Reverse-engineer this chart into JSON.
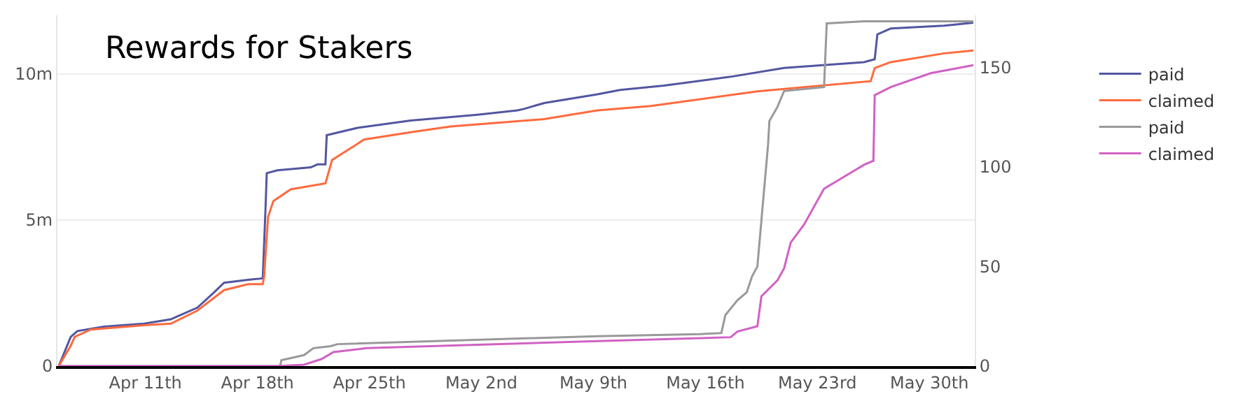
{
  "chart_data": {
    "type": "line",
    "title": "Rewards for Stakers",
    "xlim": [
      "--04-05T12:00",
      "--06-01T20:00"
    ],
    "xticks": [
      {
        "value": "--04-11",
        "label": "Apr 11th"
      },
      {
        "value": "--04-18",
        "label": "Apr 18th"
      },
      {
        "value": "--04-25",
        "label": "Apr 25th"
      },
      {
        "value": "--05-02",
        "label": "May 2nd"
      },
      {
        "value": "--05-09",
        "label": "May 9th"
      },
      {
        "value": "--05-16",
        "label": "May 16th"
      },
      {
        "value": "--05-23",
        "label": "May 23rd"
      },
      {
        "value": "--05-30",
        "label": "May 30th"
      }
    ],
    "ylim": [
      0,
      12000000
    ],
    "yticks": [
      0,
      {
        "value": 5000000,
        "label": "5m"
      },
      {
        "value": 10000000,
        "label": "10m"
      }
    ],
    "y2lim": [
      0,
      176
    ],
    "y2ticks": [
      0,
      50,
      100,
      150
    ],
    "grid": "y",
    "legend": "right",
    "series": [
      {
        "name": "paid",
        "color": "#5256a0",
        "x": [
          "--04-05T14:00",
          "--04-06T08:00",
          "--04-06T18:00",
          "--04-08T10:00",
          "--04-10T22:00",
          "--04-12T14:00",
          "--04-14T06:00",
          "--04-15T06:00",
          "--04-15T22:00",
          "--04-17T10:00",
          "--04-18T08:00",
          "--04-18T12:00",
          "--04-18T14:00",
          "--04-19T06:00",
          "--04-21T08:00",
          "--04-21T18:00",
          "--04-22T06:00",
          "--04-22T08:00",
          "--04-24T06:00",
          "--04-27T14:00",
          "--05-01T18:00",
          "--05-04T06:00",
          "--05-04T16:00",
          "--05-05T22:00",
          "--05-09T06:00",
          "--05-10T16:00",
          "--05-13T10:00",
          "--05-17T14:00",
          "--05-20T22:00",
          "--05-25T22:00",
          "--05-26T14:00",
          "--05-26T18:00",
          "--05-27T14:00",
          "--05-30T22:00",
          "--06-01T18:00"
        ],
        "values": [
          0,
          1000000,
          1200000,
          1350000,
          1450000,
          1600000,
          2000000,
          2500000,
          2850000,
          2950000,
          3000000,
          5300000,
          6600000,
          6700000,
          6800000,
          6900000,
          6900000,
          7900000,
          8150000,
          8400000,
          8600000,
          8750000,
          8800000,
          9000000,
          9300000,
          9450000,
          9600000,
          9900000,
          10200000,
          10400000,
          10500000,
          11350000,
          11550000,
          11650000,
          11750000
        ]
      },
      {
        "name": "claimed",
        "color": "#ff6a3d",
        "x": [
          "--04-05T14:00",
          "--04-06T08:00",
          "--04-06T14:00",
          "--04-07T14:00",
          "--04-10T22:00",
          "--04-12T14:00",
          "--04-14T06:00",
          "--04-15T22:00",
          "--04-17T10:00",
          "--04-18T08:00",
          "--04-18T10:00",
          "--04-18T16:00",
          "--04-19T00:00",
          "--04-20T02:00",
          "--04-22T06:00",
          "--04-22T16:00",
          "--04-24T16:00",
          "--04-27T14:00",
          "--04-30T02:00",
          "--05-05T22:00",
          "--05-09T06:00",
          "--05-12T14:00",
          "--05-19T06:00",
          "--05-26T08:00",
          "--05-26T14:00",
          "--05-27T14:00",
          "--05-30T22:00",
          "--06-01T18:00"
        ],
        "values": [
          0,
          700000,
          1000000,
          1250000,
          1400000,
          1450000,
          1900000,
          2600000,
          2800000,
          2800000,
          3050000,
          5100000,
          5650000,
          6050000,
          6250000,
          7050000,
          7750000,
          8000000,
          8200000,
          8450000,
          8750000,
          8900000,
          9400000,
          9750000,
          10200000,
          10400000,
          10700000,
          10800000
        ]
      },
      {
        "name": "paid",
        "color": "#999999",
        "axis": "y2",
        "x": [
          "--04-05T14:00",
          "--04-19T10:00",
          "--04-19T12:00",
          "--04-20T22:00",
          "--04-21T12:00",
          "--04-22T14:00",
          "--04-23T00:00",
          "--05-05T02:00",
          "--05-09T06:00",
          "--05-15T16:00",
          "--05-17T00:00",
          "--05-17T06:00",
          "--05-18T00:00",
          "--05-18T14:00",
          "--05-18T22:00",
          "--05-19T06:00",
          "--05-19T12:00",
          "--05-19T22:00",
          "--05-20T00:00",
          "--05-20T12:00",
          "--05-20T22:00",
          "--05-23T10:00",
          "--05-23T14:00",
          "--05-25T22:00",
          "--06-01T18:00"
        ],
        "values": [
          0,
          0,
          3,
          5.5,
          9,
          10,
          11,
          14,
          15,
          16,
          16.6,
          25.6,
          33,
          37,
          45,
          50,
          73,
          111,
          123,
          130,
          138,
          140,
          172,
          173,
          173
        ]
      },
      {
        "name": "claimed",
        "color": "#d161c4",
        "axis": "y2",
        "x": [
          "--04-05T14:00",
          "--04-19T06:00",
          "--04-20T22:00",
          "--04-22T00:00",
          "--04-22T18:00",
          "--04-24T20:00",
          "--05-09T06:00",
          "--05-17T14:00",
          "--05-18T00:00",
          "--05-19T06:00",
          "--05-19T12:00",
          "--05-20T12:00",
          "--05-20T22:00",
          "--05-21T08:00",
          "--05-22T04:00",
          "--05-23T10:00",
          "--05-24T16:00",
          "--05-25T22:00",
          "--05-26T12:00",
          "--05-26T14:00",
          "--05-27T14:00",
          "--05-30T02:00",
          "--06-01T18:00"
        ],
        "values": [
          0,
          0,
          0.7,
          3.5,
          7,
          9,
          12.5,
          14.5,
          17.3,
          20,
          35,
          43,
          49,
          62,
          71,
          89,
          95,
          101,
          103,
          136,
          140,
          147,
          151
        ]
      }
    ]
  }
}
